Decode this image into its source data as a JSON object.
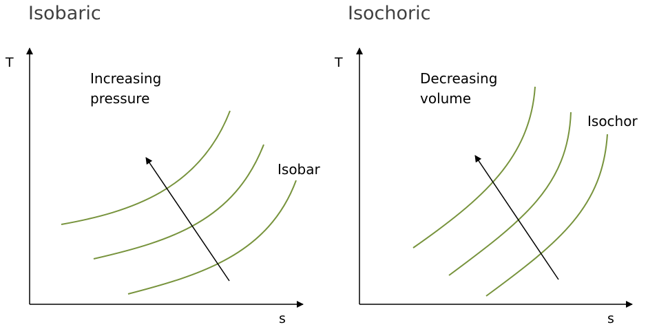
{
  "panels": [
    {
      "title": "Isobaric",
      "y_axis_label": "T",
      "x_axis_label": "s",
      "arrow_label_line1": "Increasing",
      "arrow_label_line2": "pressure",
      "curve_label": "Isobar"
    },
    {
      "title": "Isochoric",
      "y_axis_label": "T",
      "x_axis_label": "s",
      "arrow_label_line1": "Decreasing",
      "arrow_label_line2": "volume",
      "curve_label": "Isochor"
    }
  ],
  "colors": {
    "curve": "#77933c",
    "axis": "#000000",
    "title": "#404040"
  }
}
